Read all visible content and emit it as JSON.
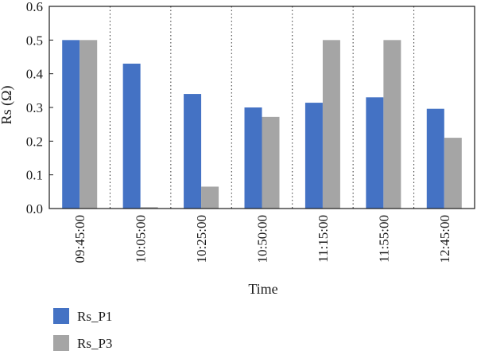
{
  "chart_data": {
    "type": "bar",
    "categories": [
      "09:45:00",
      "10:05:00",
      "10:25:00",
      "10:50:00",
      "11:15:00",
      "11:55:00",
      "12:45:00"
    ],
    "series": [
      {
        "name": "Rs_P1",
        "color": "#4472c4",
        "values": [
          0.5,
          0.43,
          0.34,
          0.3,
          0.314,
          0.33,
          0.296
        ]
      },
      {
        "name": "Rs_P3",
        "color": "#a5a5a5",
        "values": [
          0.5,
          0.004,
          0.065,
          0.272,
          0.5,
          0.5,
          0.21
        ]
      }
    ],
    "xlabel": "Time",
    "ylabel": "Rs (Ω)",
    "ylim": [
      0,
      0.6
    ],
    "yticks": [
      "0.0",
      "0.1",
      "0.2",
      "0.3",
      "0.4",
      "0.5",
      "0.6"
    ],
    "grid": "vertical dotted",
    "legend_position": "bottom-left"
  }
}
